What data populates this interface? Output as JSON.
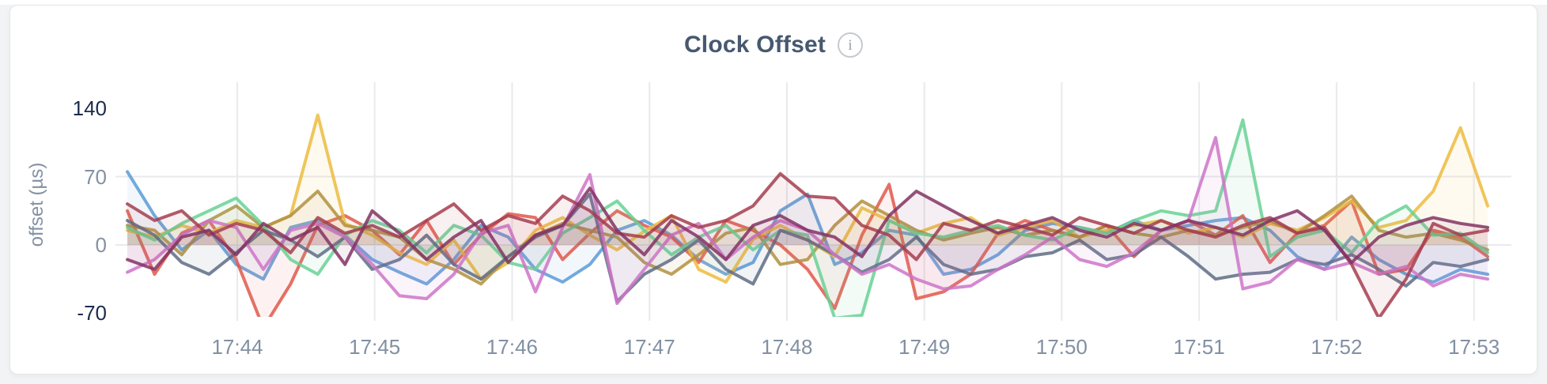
{
  "header": {
    "title": "Clock Offset",
    "info_glyph": "i"
  },
  "ui_colors": {
    "gridline": "#e9eaec",
    "tick_gray": "#8391a3",
    "tick_dark": "#1b2b4d",
    "card_border": "#e4e5e8",
    "title": "#475870"
  },
  "chart_data": {
    "type": "line",
    "title": "Clock Offset",
    "xlabel": "",
    "ylabel": "offset (µs)",
    "legend": "none",
    "grid": "on",
    "ylim": [
      -70,
      140
    ],
    "baseline": 0,
    "x_domain_minutes": [
      43.2,
      53.1
    ],
    "x_start": 43.2,
    "x_step": 0.198,
    "yticks": [
      {
        "v": 140,
        "label": "140",
        "emphasis": true
      },
      {
        "v": 70,
        "label": "70",
        "emphasis": false
      },
      {
        "v": 0,
        "label": "0",
        "emphasis": false
      },
      {
        "v": -70,
        "label": "-70",
        "emphasis": true
      }
    ],
    "hgrid_values": [
      70,
      0
    ],
    "xticks": [
      {
        "min": 44,
        "label": "17:44"
      },
      {
        "min": 45,
        "label": "17:45"
      },
      {
        "min": 46,
        "label": "17:46"
      },
      {
        "min": 47,
        "label": "17:47"
      },
      {
        "min": 48,
        "label": "17:48"
      },
      {
        "min": 49,
        "label": "17:49"
      },
      {
        "min": 50,
        "label": "17:50"
      },
      {
        "min": 51,
        "label": "17:51"
      },
      {
        "min": 52,
        "label": "17:52"
      },
      {
        "min": 53,
        "label": "17:53"
      }
    ],
    "series": [
      {
        "name": "blue",
        "color": "#5B9BD8",
        "values": [
          75,
          30,
          -5,
          15,
          -20,
          -35,
          18,
          25,
          10,
          -15,
          -28,
          -40,
          -15,
          20,
          8,
          -25,
          -38,
          -20,
          15,
          25,
          10,
          -15,
          -30,
          -18,
          35,
          52,
          -20,
          -8,
          15,
          10,
          -30,
          -25,
          -10,
          15,
          22,
          18,
          12,
          25,
          15,
          20,
          25,
          28,
          15,
          -12,
          -25,
          8,
          -15,
          -30,
          -38,
          -25,
          -30
        ]
      },
      {
        "name": "red",
        "color": "#E0584B",
        "values": [
          35,
          -30,
          12,
          25,
          -15,
          -85,
          -40,
          20,
          30,
          15,
          -10,
          25,
          -20,
          10,
          32,
          28,
          -15,
          12,
          35,
          20,
          8,
          -18,
          25,
          15,
          0,
          -25,
          -65,
          10,
          62,
          -55,
          -48,
          -30,
          12,
          25,
          15,
          8,
          20,
          -12,
          15,
          25,
          10,
          30,
          -18,
          12,
          20,
          45,
          -30,
          -25,
          15,
          8,
          -12
        ]
      },
      {
        "name": "gold",
        "color": "#EDBB3F",
        "values": [
          15,
          8,
          20,
          12,
          25,
          18,
          30,
          133,
          22,
          10,
          -8,
          -20,
          5,
          -35,
          -18,
          15,
          28,
          10,
          -5,
          14,
          30,
          -25,
          -38,
          6,
          20,
          5,
          -12,
          38,
          25,
          12,
          22,
          28,
          10,
          18,
          25,
          8,
          15,
          20,
          25,
          12,
          18,
          8,
          22,
          15,
          28,
          45,
          18,
          25,
          55,
          120,
          40
        ]
      },
      {
        "name": "khaki",
        "color": "#B29040",
        "values": [
          20,
          15,
          -10,
          25,
          40,
          18,
          30,
          55,
          20,
          15,
          8,
          -15,
          -25,
          -40,
          -12,
          10,
          22,
          15,
          8,
          -18,
          -30,
          -10,
          12,
          18,
          -20,
          -15,
          20,
          45,
          30,
          15,
          5,
          12,
          18,
          10,
          15,
          8,
          20,
          12,
          8,
          15,
          10,
          18,
          25,
          12,
          30,
          50,
          15,
          8,
          12,
          5,
          -5
        ]
      },
      {
        "name": "green",
        "color": "#69D194",
        "values": [
          18,
          5,
          22,
          35,
          48,
          20,
          -15,
          -30,
          10,
          25,
          15,
          -8,
          20,
          10,
          -18,
          -25,
          12,
          28,
          45,
          15,
          -10,
          8,
          20,
          -5,
          15,
          10,
          -75,
          -72,
          25,
          12,
          8,
          15,
          20,
          10,
          5,
          18,
          12,
          25,
          35,
          30,
          35,
          128,
          -12,
          8,
          15,
          -8,
          25,
          40,
          10,
          12,
          -8
        ]
      },
      {
        "name": "slate",
        "color": "#5E6C85",
        "values": [
          25,
          10,
          -18,
          -30,
          -8,
          15,
          5,
          -12,
          8,
          -25,
          -15,
          10,
          -20,
          -35,
          -12,
          8,
          20,
          52,
          -58,
          -30,
          -15,
          5,
          -25,
          -40,
          15,
          5,
          -10,
          -28,
          -15,
          8,
          -20,
          -30,
          -25,
          -12,
          -8,
          5,
          -15,
          -10,
          8,
          -12,
          -35,
          -30,
          -28,
          -15,
          -20,
          -10,
          -25,
          -42,
          -18,
          -22,
          -15
        ]
      },
      {
        "name": "orchid",
        "color": "#CE74C8",
        "values": [
          -28,
          -15,
          10,
          25,
          18,
          -25,
          15,
          22,
          8,
          -20,
          -52,
          -55,
          -30,
          12,
          20,
          -48,
          18,
          72,
          -60,
          -25,
          10,
          22,
          -15,
          8,
          25,
          15,
          -10,
          -30,
          -20,
          -35,
          -45,
          -42,
          -25,
          -10,
          8,
          -15,
          -22,
          -8,
          15,
          25,
          110,
          -45,
          -38,
          -15,
          -25,
          -18,
          -30,
          -22,
          -42,
          -30,
          -35
        ]
      },
      {
        "name": "maroon",
        "color": "#A63D4F",
        "values": [
          42,
          25,
          35,
          10,
          22,
          15,
          -8,
          28,
          12,
          20,
          8,
          25,
          42,
          15,
          30,
          22,
          50,
          35,
          12,
          8,
          30,
          18,
          25,
          40,
          73,
          50,
          48,
          20,
          10,
          -15,
          22,
          15,
          25,
          18,
          10,
          28,
          20,
          12,
          25,
          15,
          8,
          20,
          28,
          12,
          18,
          -20,
          -75,
          -35,
          22,
          10,
          15
        ]
      },
      {
        "name": "plum",
        "color": "#833263",
        "values": [
          -15,
          -25,
          8,
          15,
          -10,
          22,
          5,
          18,
          -20,
          35,
          12,
          -15,
          8,
          25,
          -18,
          10,
          20,
          58,
          15,
          -10,
          25,
          8,
          -15,
          20,
          30,
          15,
          8,
          -12,
          30,
          55,
          40,
          25,
          12,
          20,
          28,
          15,
          8,
          22,
          15,
          25,
          18,
          10,
          25,
          35,
          15,
          -18,
          8,
          20,
          28,
          22,
          18
        ]
      }
    ]
  }
}
